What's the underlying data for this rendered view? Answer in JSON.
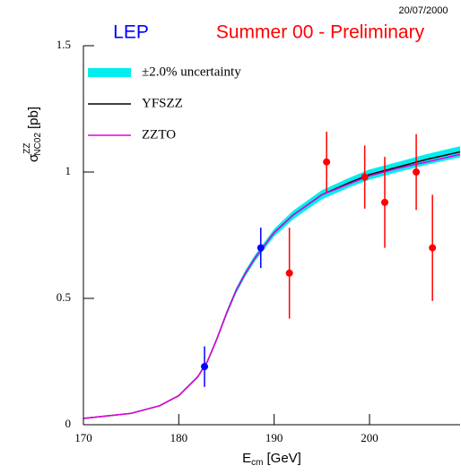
{
  "chart_data": {
    "type": "line",
    "date": "20/07/2000",
    "title_left": "LEP",
    "title_right": "Summer 00 - Preliminary",
    "x_label": {
      "symbol": "E",
      "sub": "cm",
      "unit": "[GeV]"
    },
    "y_label": {
      "symbol": "σ",
      "sup": "ZZ",
      "sub": "NC02",
      "unit": "[pb]"
    },
    "xlim": [
      170,
      209.5
    ],
    "ylim": [
      0,
      1.5
    ],
    "xticks": [
      170,
      180,
      190,
      200
    ],
    "yticks": [
      0,
      0.5,
      1,
      1.5
    ],
    "legend": "top-left",
    "x": [
      170,
      175,
      178,
      180,
      182,
      183,
      184,
      185,
      186,
      187,
      188,
      190,
      192,
      195,
      198,
      200,
      203,
      206,
      209.5
    ],
    "series": [
      {
        "name": "±2.0% uncertainty",
        "color": "#00eeee",
        "type": "band",
        "low": [
          0.0245,
          0.044,
          0.0735,
          0.113,
          0.186,
          0.245,
          0.333,
          0.431,
          0.519,
          0.588,
          0.647,
          0.745,
          0.813,
          0.892,
          0.941,
          0.97,
          1.0,
          1.029,
          1.058
        ],
        "high": [
          0.0255,
          0.046,
          0.0765,
          0.117,
          0.194,
          0.255,
          0.347,
          0.449,
          0.541,
          0.612,
          0.673,
          0.775,
          0.847,
          0.928,
          0.979,
          1.01,
          1.04,
          1.071,
          1.102
        ]
      },
      {
        "name": "YFSZZ",
        "color": "#000000",
        "type": "line",
        "values": [
          0.025,
          0.045,
          0.075,
          0.115,
          0.19,
          0.25,
          0.34,
          0.44,
          0.53,
          0.6,
          0.66,
          0.76,
          0.83,
          0.91,
          0.96,
          0.99,
          1.02,
          1.05,
          1.08
        ]
      },
      {
        "name": "ZZTO",
        "color": "#e000e0",
        "type": "line",
        "values": [
          0.025,
          0.045,
          0.075,
          0.115,
          0.19,
          0.25,
          0.34,
          0.44,
          0.53,
          0.6,
          0.66,
          0.76,
          0.83,
          0.91,
          0.955,
          0.985,
          1.015,
          1.04,
          1.07
        ]
      }
    ],
    "points": [
      {
        "color": "#0000ff",
        "x": [
          182.7,
          188.6
        ],
        "values": [
          0.23,
          0.7
        ],
        "errors": [
          0.08,
          0.08
        ]
      },
      {
        "color": "#ff0000",
        "x": [
          191.6,
          195.5,
          199.5,
          201.6,
          204.9,
          206.6
        ],
        "values": [
          0.6,
          1.04,
          0.98,
          0.88,
          1.0,
          0.7
        ],
        "errors": [
          0.18,
          0.12,
          0.125,
          0.18,
          0.15,
          0.21
        ]
      }
    ]
  }
}
